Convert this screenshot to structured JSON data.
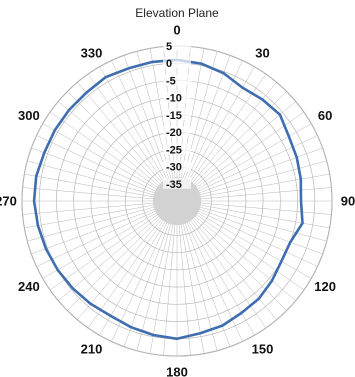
{
  "chart_data": {
    "type": "polar-line",
    "title": "Elevation Plane",
    "angle_unit": "degrees",
    "angle_zero": "top",
    "angle_direction": "clockwise",
    "angle_ticks": [
      0,
      30,
      60,
      90,
      120,
      150,
      180,
      210,
      240,
      270,
      300,
      330
    ],
    "angle_tick_labels": [
      "0",
      "30",
      "60",
      "90",
      "120",
      "150",
      "180",
      "210",
      "240",
      "270",
      "300",
      "330"
    ],
    "radial_ticks": [
      5,
      0,
      -5,
      -10,
      -15,
      -20,
      -25,
      -30,
      -35
    ],
    "radial_tick_labels": [
      "5",
      "0",
      "-5",
      "-10",
      "-15",
      "-20",
      "-25",
      "-30",
      "-35"
    ],
    "rlim": [
      -40,
      5
    ],
    "grid": true,
    "series_color": "#3f6eb0",
    "grid_color": "#b8b8b8",
    "series": [
      {
        "theta": [
          0,
          10,
          20,
          30,
          40,
          50,
          60,
          70,
          80,
          90,
          100,
          110,
          120,
          130,
          140,
          150,
          160,
          170,
          180,
          190,
          200,
          210,
          220,
          230,
          240,
          250,
          260,
          270,
          280,
          290,
          300,
          310,
          320,
          330,
          340,
          350
        ],
        "r": [
          1,
          0.5,
          -0.5,
          -2,
          -1.5,
          -1,
          -2.5,
          -3,
          -3.5,
          -4,
          -3,
          -5,
          -5,
          -4,
          -3,
          -2.5,
          -1.5,
          -1,
          0,
          -0.5,
          -1,
          -1.5,
          -1,
          -0.5,
          0,
          0.5,
          1,
          1.5,
          1.5,
          1,
          1,
          1,
          1,
          1.5,
          1,
          1
        ]
      }
    ]
  }
}
